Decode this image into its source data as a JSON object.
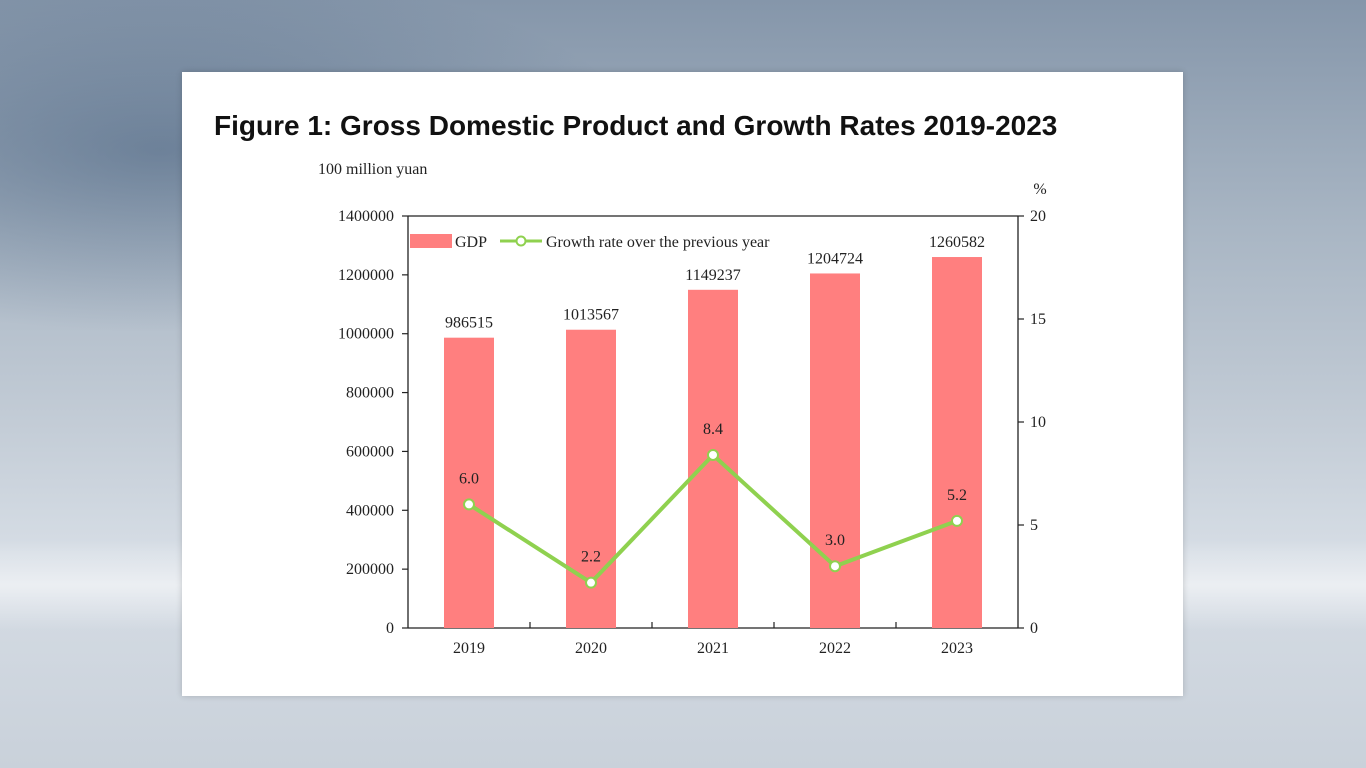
{
  "chart_data": {
    "type": "bar",
    "title": "Figure 1: Gross Domestic Product and Growth Rates 2019-2023",
    "ylabel": "100 million yuan",
    "y2label": "%",
    "categories": [
      "2019",
      "2020",
      "2021",
      "2022",
      "2023"
    ],
    "series": [
      {
        "name": "GDP",
        "type": "bar",
        "axis": "left",
        "color": "#ff7f7f",
        "values": [
          986515,
          1013567,
          1149237,
          1204724,
          1260582
        ],
        "labels": [
          "986515",
          "1013567",
          "1149237",
          "1204724",
          "1260582"
        ]
      },
      {
        "name": "Growth rate over the previous year",
        "type": "line",
        "axis": "right",
        "color": "#8fd14f",
        "values": [
          6.0,
          2.2,
          8.4,
          3.0,
          5.2
        ],
        "labels": [
          "6.0",
          "2.2",
          "8.4",
          "3.0",
          "5.2"
        ]
      }
    ],
    "ylim": [
      0,
      1400000
    ],
    "y2lim": [
      0,
      20
    ],
    "yticks": [
      "0",
      "200000",
      "400000",
      "600000",
      "800000",
      "1000000",
      "1200000",
      "1400000"
    ],
    "y2ticks": [
      "0",
      "5",
      "10",
      "15",
      "20"
    ],
    "legend": "top-left"
  }
}
